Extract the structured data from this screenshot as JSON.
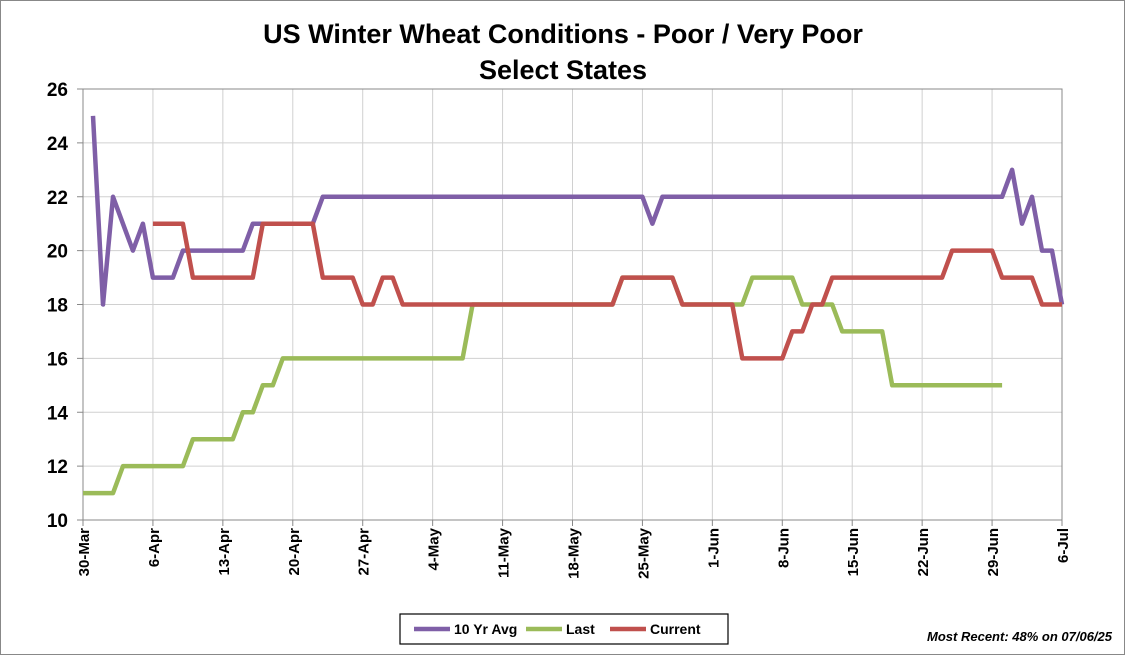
{
  "chart_data": {
    "type": "line",
    "title": "US Winter Wheat Conditions - Poor / Very Poor",
    "subtitle": "Select States",
    "xlabel": "",
    "ylabel": "",
    "ylim": [
      10,
      26
    ],
    "yticks": [
      10,
      12,
      14,
      16,
      18,
      20,
      22,
      24,
      26
    ],
    "xlim": [
      0,
      98
    ],
    "xticks": [
      {
        "day": 0,
        "label": "30-Mar"
      },
      {
        "day": 7,
        "label": "6-Apr"
      },
      {
        "day": 14,
        "label": "13-Apr"
      },
      {
        "day": 21,
        "label": "20-Apr"
      },
      {
        "day": 28,
        "label": "27-Apr"
      },
      {
        "day": 35,
        "label": "4-May"
      },
      {
        "day": 42,
        "label": "11-May"
      },
      {
        "day": 49,
        "label": "18-May"
      },
      {
        "day": 56,
        "label": "25-May"
      },
      {
        "day": 63,
        "label": "1-Jun"
      },
      {
        "day": 70,
        "label": "8-Jun"
      },
      {
        "day": 77,
        "label": "15-Jun"
      },
      {
        "day": 84,
        "label": "22-Jun"
      },
      {
        "day": 91,
        "label": "29-Jun"
      },
      {
        "day": 98,
        "label": "6-Jul"
      }
    ],
    "grid": true,
    "legend_position": "bottom",
    "series": [
      {
        "name": "10 Yr Avg",
        "color": "#7F5FA7",
        "points": [
          [
            1,
            25
          ],
          [
            2,
            18
          ],
          [
            3,
            22
          ],
          [
            5,
            20
          ],
          [
            6,
            21
          ],
          [
            7,
            19
          ],
          [
            9,
            19
          ],
          [
            10,
            20
          ],
          [
            16,
            20
          ],
          [
            17,
            21
          ],
          [
            23,
            21
          ],
          [
            24,
            22
          ],
          [
            56,
            22
          ],
          [
            57,
            21
          ],
          [
            58,
            22
          ],
          [
            92,
            22
          ],
          [
            93,
            23
          ],
          [
            94,
            21
          ],
          [
            95,
            22
          ],
          [
            96,
            20
          ],
          [
            97,
            20
          ],
          [
            98,
            18
          ]
        ]
      },
      {
        "name": "Last",
        "color": "#9BBB59",
        "points": [
          [
            0,
            11
          ],
          [
            3,
            11
          ],
          [
            4,
            12
          ],
          [
            10,
            12
          ],
          [
            11,
            13
          ],
          [
            15,
            13
          ],
          [
            16,
            14
          ],
          [
            17,
            14
          ],
          [
            18,
            15
          ],
          [
            19,
            15
          ],
          [
            20,
            16
          ],
          [
            38,
            16
          ],
          [
            39,
            18
          ],
          [
            53,
            18
          ],
          [
            54,
            19
          ],
          [
            59,
            19
          ],
          [
            60,
            18
          ],
          [
            66,
            18
          ],
          [
            67,
            19
          ],
          [
            71,
            19
          ],
          [
            72,
            18
          ],
          [
            75,
            18
          ],
          [
            76,
            17
          ],
          [
            80,
            17
          ],
          [
            81,
            15
          ],
          [
            92,
            15
          ]
        ]
      },
      {
        "name": "Current",
        "color": "#C0504D",
        "points": [
          [
            7,
            21
          ],
          [
            10,
            21
          ],
          [
            11,
            19
          ],
          [
            17,
            19
          ],
          [
            18,
            21
          ],
          [
            23,
            21
          ],
          [
            24,
            19
          ],
          [
            27,
            19
          ],
          [
            28,
            18
          ],
          [
            29,
            18
          ],
          [
            30,
            19
          ],
          [
            31,
            19
          ],
          [
            32,
            18
          ],
          [
            53,
            18
          ],
          [
            54,
            19
          ],
          [
            59,
            19
          ],
          [
            60,
            18
          ],
          [
            65,
            18
          ],
          [
            66,
            16
          ],
          [
            70,
            16
          ],
          [
            71,
            17
          ],
          [
            72,
            17
          ],
          [
            73,
            18
          ],
          [
            74,
            18
          ],
          [
            75,
            19
          ],
          [
            86,
            19
          ],
          [
            87,
            20
          ],
          [
            91,
            20
          ],
          [
            92,
            19
          ],
          [
            95,
            19
          ],
          [
            96,
            18
          ],
          [
            98,
            18
          ]
        ]
      }
    ],
    "annotation": "Most Recent: 48% on 07/06/25"
  }
}
